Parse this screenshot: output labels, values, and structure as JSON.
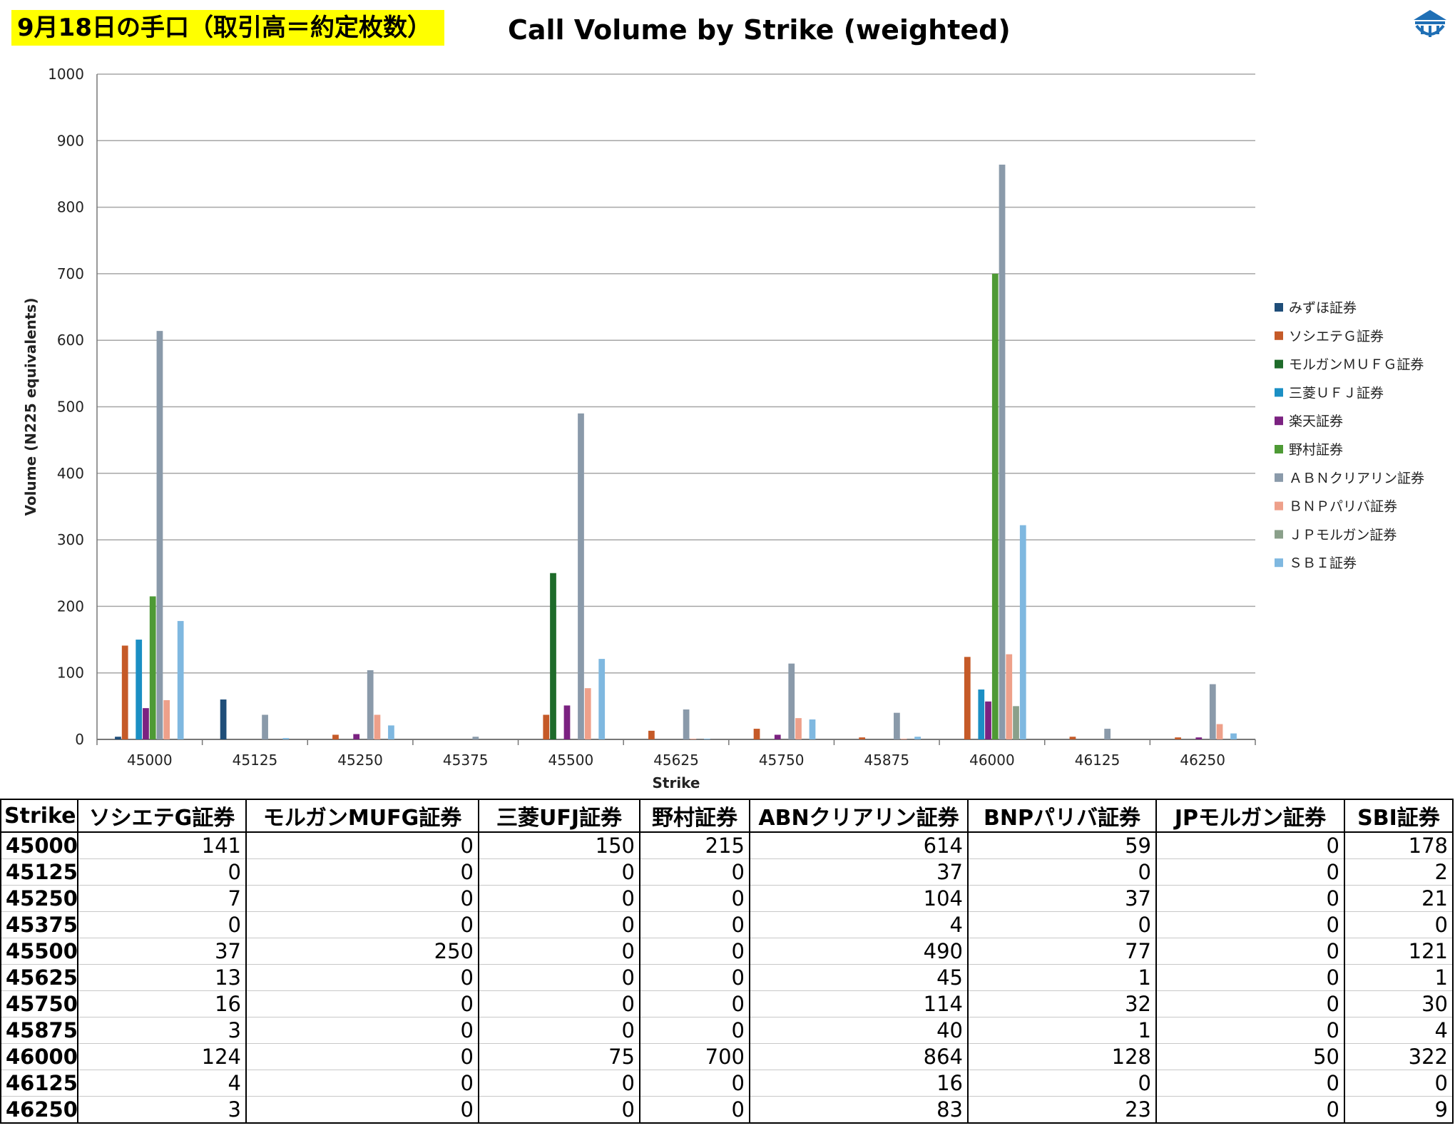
{
  "header": {
    "label": "9月18日の手口（取引高＝約定枚数）",
    "title": "Call Volume by Strike (weighted)"
  },
  "logo": {
    "icon": "building-logo-icon",
    "color": "#1f6fb5"
  },
  "chart_data": {
    "type": "bar",
    "title": "Call Volume by Strike (weighted)",
    "xlabel": "Strike",
    "ylabel": "Volume (N225 equivalents)",
    "ylim": [
      0,
      1000
    ],
    "yticks": [
      0,
      100,
      200,
      300,
      400,
      500,
      600,
      700,
      800,
      900,
      1000
    ],
    "grid": true,
    "legend_position": "right",
    "categories": [
      "45000",
      "45125",
      "45250",
      "45375",
      "45500",
      "45625",
      "45750",
      "45875",
      "46000",
      "46125",
      "46250"
    ],
    "series": [
      {
        "name": "みずほ証券",
        "color": "#1f4e79",
        "values": [
          4,
          60,
          0,
          0,
          0,
          0,
          0,
          0,
          0,
          0,
          0
        ]
      },
      {
        "name": "ソシエテＧ証券",
        "color": "#c55a28",
        "values": [
          141,
          0,
          7,
          0,
          37,
          13,
          16,
          3,
          124,
          4,
          3
        ]
      },
      {
        "name": "モルガンＭＵＦＧ証券",
        "color": "#1e6b2a",
        "values": [
          0,
          0,
          0,
          0,
          250,
          0,
          0,
          0,
          0,
          0,
          0
        ]
      },
      {
        "name": "三菱ＵＦＪ証券",
        "color": "#1b8fc4",
        "values": [
          150,
          0,
          0,
          0,
          0,
          0,
          0,
          0,
          75,
          0,
          0
        ]
      },
      {
        "name": "楽天証券",
        "color": "#7b2281",
        "values": [
          47,
          0,
          8,
          0,
          51,
          0,
          7,
          0,
          57,
          0,
          3
        ]
      },
      {
        "name": "野村証券",
        "color": "#4e9a35",
        "values": [
          215,
          0,
          0,
          0,
          0,
          0,
          0,
          0,
          700,
          0,
          0
        ]
      },
      {
        "name": "ＡＢＮクリアリン証券",
        "color": "#8a9aaa",
        "values": [
          614,
          37,
          104,
          4,
          490,
          45,
          114,
          40,
          864,
          16,
          83
        ]
      },
      {
        "name": "ＢＮＰパリバ証券",
        "color": "#eea08a",
        "values": [
          59,
          0,
          37,
          0,
          77,
          1,
          32,
          1,
          128,
          0,
          23
        ]
      },
      {
        "name": "ＪＰモルガン証券",
        "color": "#8aa08a",
        "values": [
          0,
          0,
          0,
          0,
          0,
          0,
          0,
          0,
          50,
          0,
          0
        ]
      },
      {
        "name": "ＳＢＩ証券",
        "color": "#7fb8e0",
        "values": [
          178,
          2,
          21,
          0,
          121,
          1,
          30,
          4,
          322,
          0,
          9
        ]
      }
    ]
  },
  "table": {
    "headers": [
      "Strike",
      "ソシエテG証券",
      "モルガンMUFG証券",
      "三菱UFJ証券",
      "野村証券",
      "ABNクリアリン証券",
      "BNPパリバ証券",
      "JPモルガン証券",
      "SBI証券"
    ],
    "rows": [
      [
        "45000",
        "141",
        "0",
        "150",
        "215",
        "614",
        "59",
        "0",
        "178"
      ],
      [
        "45125",
        "0",
        "0",
        "0",
        "0",
        "37",
        "0",
        "0",
        "2"
      ],
      [
        "45250",
        "7",
        "0",
        "0",
        "0",
        "104",
        "37",
        "0",
        "21"
      ],
      [
        "45375",
        "0",
        "0",
        "0",
        "0",
        "4",
        "0",
        "0",
        "0"
      ],
      [
        "45500",
        "37",
        "250",
        "0",
        "0",
        "490",
        "77",
        "0",
        "121"
      ],
      [
        "45625",
        "13",
        "0",
        "0",
        "0",
        "45",
        "1",
        "0",
        "1"
      ],
      [
        "45750",
        "16",
        "0",
        "0",
        "0",
        "114",
        "32",
        "0",
        "30"
      ],
      [
        "45875",
        "3",
        "0",
        "0",
        "0",
        "40",
        "1",
        "0",
        "4"
      ],
      [
        "46000",
        "124",
        "0",
        "75",
        "700",
        "864",
        "128",
        "50",
        "322"
      ],
      [
        "46125",
        "4",
        "0",
        "0",
        "0",
        "16",
        "0",
        "0",
        "0"
      ],
      [
        "46250",
        "3",
        "0",
        "0",
        "0",
        "83",
        "23",
        "0",
        "9"
      ]
    ]
  }
}
